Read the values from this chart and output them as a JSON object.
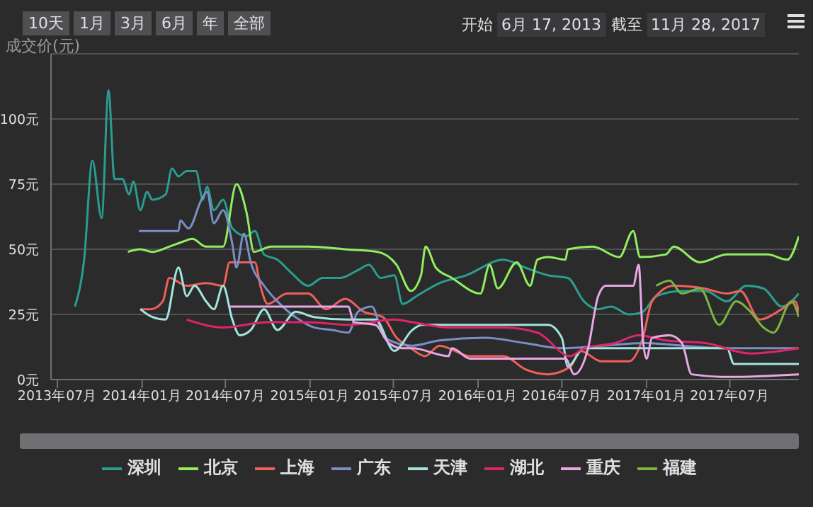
{
  "chart_data": {
    "type": "line",
    "ylabel": "成交价(元)",
    "annotations": [
      "10天",
      "1月",
      "3月",
      "6月",
      "年",
      "全部",
      "开始",
      "6月 17, 2013",
      "截至",
      "11月 28, 2017"
    ],
    "xlim": [
      "2013-06-17",
      "2017-11-28"
    ],
    "xticks": [
      {
        "value": "2013-07",
        "label": "2013年07月"
      },
      {
        "value": "2014-01",
        "label": "2014年01月"
      },
      {
        "value": "2014-07",
        "label": "2014年07月"
      },
      {
        "value": "2015-01",
        "label": "2015年01月"
      },
      {
        "value": "2015-07",
        "label": "2015年07月"
      },
      {
        "value": "2016-01",
        "label": "2016年01月"
      },
      {
        "value": "2016-07",
        "label": "2016年07月"
      },
      {
        "value": "2017-01",
        "label": "2017年01月"
      },
      {
        "value": "2017-07",
        "label": "2017年07月"
      }
    ],
    "ylim": [
      0,
      125
    ],
    "yticks": [
      {
        "value": 0,
        "label": "0元"
      },
      {
        "value": 25,
        "label": "25元"
      },
      {
        "value": 50,
        "label": "50元"
      },
      {
        "value": 75,
        "label": "75元"
      },
      {
        "value": 100,
        "label": "100元"
      },
      {
        "value": 125,
        "label": null
      }
    ],
    "grid": "y",
    "legend": "bottom",
    "series": [
      {
        "name": "深圳",
        "color": "#2a9d8f",
        "x": [
          "2013-08-08",
          "2013-08-28",
          "2013-09-15",
          "2013-10-05",
          "2013-10-20",
          "2013-11-02",
          "2013-11-19",
          "2013-12-04",
          "2013-12-13",
          "2013-12-28",
          "2014-01-12",
          "2014-01-23",
          "2014-02-21",
          "2014-03-07",
          "2014-03-21",
          "2014-04-08",
          "2014-04-28",
          "2014-05-13",
          "2014-05-22",
          "2014-06-06",
          "2014-06-26",
          "2014-07-16",
          "2014-08-16",
          "2014-09-03",
          "2014-09-23",
          "2014-10-22",
          "2014-11-21",
          "2014-12-28",
          "2015-01-28",
          "2015-03-08",
          "2015-04-15",
          "2015-05-09",
          "2015-06-03",
          "2015-07-03",
          "2015-07-21",
          "2015-08-20",
          "2015-10-09",
          "2015-12-06",
          "2016-02-25",
          "2016-04-12",
          "2016-06-01",
          "2016-07-14",
          "2016-08-18",
          "2016-09-18",
          "2016-10-16",
          "2016-11-24",
          "2016-12-24",
          "2017-01-22",
          "2017-03-19",
          "2017-05-09",
          "2017-06-25",
          "2017-08-06",
          "2017-09-12",
          "2017-10-22",
          "2017-11-28"
        ],
        "values": [
          28,
          46,
          84,
          62,
          111,
          77,
          77,
          71,
          76,
          65,
          72,
          69,
          71,
          81,
          78,
          80,
          80,
          69,
          74,
          65,
          69,
          58,
          55,
          57,
          48,
          46,
          41,
          36,
          39,
          39,
          42,
          44,
          39,
          40,
          29,
          32,
          37,
          40,
          46,
          43,
          40,
          39,
          30,
          27,
          28,
          25,
          26,
          32,
          34,
          34,
          30,
          36,
          35,
          28,
          33
        ]
      },
      {
        "name": "北京",
        "color": "#90ee60",
        "x": [
          "2013-12-01",
          "2013-12-28",
          "2014-01-23",
          "2014-03-01",
          "2014-04-01",
          "2014-04-20",
          "2014-05-20",
          "2014-06-26",
          "2014-07-25",
          "2014-08-16",
          "2014-09-01",
          "2014-10-08",
          "2014-12-28",
          "2015-03-18",
          "2015-05-28",
          "2015-07-08",
          "2015-08-08",
          "2015-08-30",
          "2015-09-09",
          "2015-10-01",
          "2015-11-05",
          "2016-01-06",
          "2016-01-26",
          "2016-02-13",
          "2016-03-25",
          "2016-04-23",
          "2016-05-09",
          "2016-06-01",
          "2016-07-09",
          "2016-07-14",
          "2016-09-06",
          "2016-11-03",
          "2016-12-03",
          "2016-12-18",
          "2017-02-12",
          "2017-03-01",
          "2017-04-27",
          "2017-06-25",
          "2017-09-21",
          "2017-11-03",
          "2017-11-28"
        ],
        "values": [
          49,
          50,
          49,
          51,
          53,
          54,
          51,
          51,
          75,
          64,
          49,
          51,
          51,
          50,
          49,
          44,
          34,
          40,
          51,
          43,
          39,
          33,
          44,
          35,
          45,
          36,
          46,
          47,
          46,
          50,
          51,
          47,
          57,
          47,
          48,
          51,
          45,
          48,
          48,
          46,
          55
        ]
      },
      {
        "name": "上海",
        "color": "#f0605a",
        "x": [
          "2013-12-28",
          "2014-01-20",
          "2014-02-15",
          "2014-03-01",
          "2014-04-08",
          "2014-05-20",
          "2014-06-26",
          "2014-07-10",
          "2014-09-03",
          "2014-09-15",
          "2014-10-01",
          "2014-11-12",
          "2014-12-28",
          "2015-02-05",
          "2015-03-18",
          "2015-04-28",
          "2015-06-08",
          "2015-07-08",
          "2015-08-08",
          "2015-09-08",
          "2015-10-09",
          "2015-12-15",
          "2016-02-25",
          "2016-04-12",
          "2016-06-01",
          "2016-07-20",
          "2016-08-10",
          "2016-09-25",
          "2016-11-24",
          "2016-12-24",
          "2017-01-13",
          "2017-03-01",
          "2017-05-05",
          "2017-06-25",
          "2017-07-24",
          "2017-09-04",
          "2017-10-22",
          "2017-11-20",
          "2017-11-28"
        ],
        "values": [
          27,
          27,
          30,
          39,
          36,
          37,
          36,
          45,
          45,
          36,
          29,
          33,
          33,
          27,
          31,
          26,
          24,
          16,
          12,
          9,
          13,
          9,
          9,
          4,
          2,
          5,
          11,
          7,
          7,
          16,
          30,
          36,
          35,
          33,
          34,
          23,
          27,
          30,
          26
        ]
      },
      {
        "name": "广东",
        "color": "#7b8fc7",
        "x": [
          "2013-12-25",
          "2014-03-21",
          "2014-03-25",
          "2014-04-12",
          "2014-05-10",
          "2014-05-22",
          "2014-06-06",
          "2014-06-26",
          "2014-07-16",
          "2014-07-25",
          "2014-08-10",
          "2014-08-25",
          "2014-09-23",
          "2014-10-22",
          "2014-12-08",
          "2015-01-09",
          "2015-02-18",
          "2015-03-25",
          "2015-04-15",
          "2015-05-15",
          "2015-06-12",
          "2015-08-11",
          "2015-10-09",
          "2016-01-15",
          "2016-04-12",
          "2016-07-01",
          "2016-09-27",
          "2016-12-28",
          "2017-03-19",
          "2017-06-25",
          "2017-11-28"
        ],
        "values": [
          57,
          57,
          61,
          58,
          69,
          72,
          60,
          65,
          52,
          43,
          56,
          45,
          36,
          30,
          23,
          20,
          19,
          18,
          26,
          28,
          16,
          13,
          15,
          16,
          14,
          12,
          13,
          14,
          13,
          12,
          12
        ]
      },
      {
        "name": "天津",
        "color": "#a0e6dc",
        "x": [
          "2013-12-28",
          "2014-01-23",
          "2014-02-21",
          "2014-03-21",
          "2014-04-08",
          "2014-04-25",
          "2014-05-20",
          "2014-06-06",
          "2014-06-26",
          "2014-07-16",
          "2014-08-01",
          "2014-08-25",
          "2014-09-23",
          "2014-10-22",
          "2014-12-01",
          "2015-01-09",
          "2015-03-25",
          "2015-05-23",
          "2015-07-03",
          "2015-08-11",
          "2015-09-01",
          "2015-11-16",
          "2016-06-01",
          "2016-07-01",
          "2016-07-14",
          "2016-08-18",
          "2016-12-15",
          "2017-03-19",
          "2017-06-25",
          "2017-07-10",
          "2017-11-28"
        ],
        "values": [
          27,
          24,
          23,
          43,
          32,
          36,
          30,
          27,
          36,
          23,
          17,
          19,
          27,
          19,
          26,
          24,
          23,
          23,
          11,
          19,
          21,
          21,
          21,
          16,
          5,
          12,
          12,
          12,
          12,
          6,
          6
        ]
      },
      {
        "name": "湖北",
        "color": "#e0246a",
        "x": [
          "2014-04-08",
          "2014-06-26",
          "2014-10-01",
          "2014-12-28",
          "2015-03-25",
          "2015-07-03",
          "2015-08-11",
          "2015-10-29",
          "2016-02-25",
          "2016-05-09",
          "2016-07-19",
          "2016-08-18",
          "2016-10-25",
          "2016-12-15",
          "2017-02-12",
          "2017-05-09",
          "2017-08-15",
          "2017-11-28"
        ],
        "values": [
          23,
          20,
          22,
          22,
          21,
          23,
          22,
          20,
          20,
          18,
          9,
          12,
          14,
          17,
          15,
          14,
          10,
          12
        ]
      },
      {
        "name": "重庆",
        "color": "#e8a8e4",
        "x": [
          "2014-07-10",
          "2015-03-25",
          "2015-04-06",
          "2015-05-23",
          "2015-06-21",
          "2015-07-21",
          "2015-08-11",
          "2015-10-29",
          "2015-11-05",
          "2015-12-15",
          "2016-07-09",
          "2016-07-28",
          "2016-08-27",
          "2016-09-18",
          "2016-10-05",
          "2016-12-03",
          "2016-12-15",
          "2016-12-24",
          "2017-01-01",
          "2017-01-13",
          "2017-02-20",
          "2017-03-19",
          "2017-04-09",
          "2017-06-25",
          "2017-11-28"
        ],
        "values": [
          28,
          28,
          22,
          21,
          14,
          12,
          12,
          9,
          12,
          8,
          8,
          2,
          12,
          32,
          36,
          36,
          44,
          16,
          8,
          16,
          17,
          14,
          2,
          1,
          2
        ]
      },
      {
        "name": "福建",
        "color": "#7cb342",
        "x": [
          "2017-01-22",
          "2017-02-20",
          "2017-03-19",
          "2017-04-27",
          "2017-06-08",
          "2017-07-15",
          "2017-08-15",
          "2017-09-12",
          "2017-10-04",
          "2017-11-12",
          "2017-11-28"
        ],
        "values": [
          36,
          38,
          33,
          35,
          21,
          30,
          26,
          20,
          18,
          30,
          24
        ]
      }
    ]
  }
}
